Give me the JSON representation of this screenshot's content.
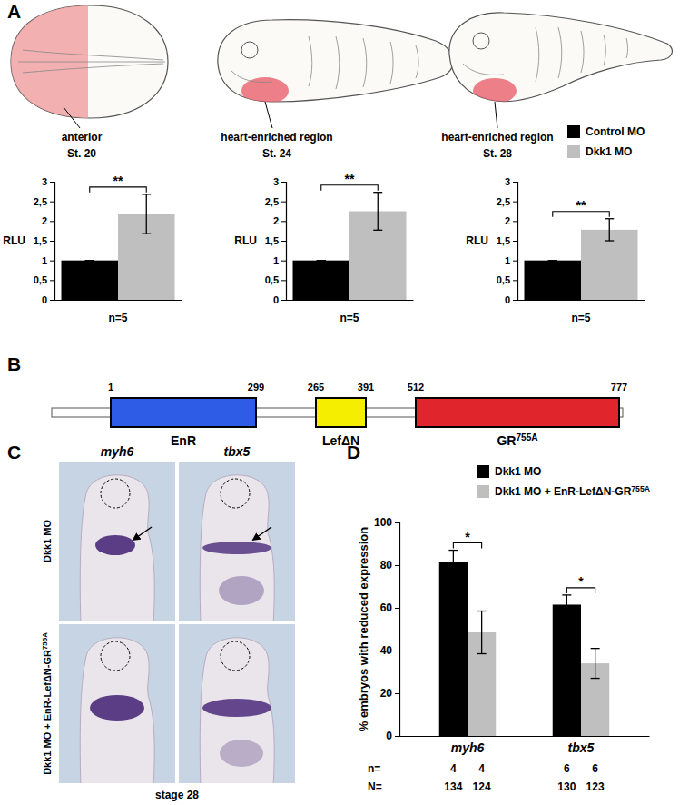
{
  "panel_labels": [
    "A",
    "B",
    "C",
    "D"
  ],
  "embryo_drawings": [
    {
      "label": "anterior",
      "stage": "St. 20"
    },
    {
      "label": "heart-enriched region",
      "stage": "St. 24"
    },
    {
      "label": "heart-enriched region",
      "stage": "St. 28"
    }
  ],
  "chart_data": [
    {
      "type": "bar",
      "categories": [
        null
      ],
      "xlabel": "n=5",
      "ylabel": "RLU",
      "ylim": [
        0,
        3
      ],
      "yticks": [
        0,
        {
          "value": 0.5,
          "label": "0,5"
        },
        1,
        {
          "value": 1.5,
          "label": "1,5"
        },
        2,
        {
          "value": 2.5,
          "label": "2,5"
        },
        3
      ],
      "series": [
        {
          "color": "#000000",
          "values": [
            1
          ],
          "errors": [
            0
          ]
        },
        {
          "color": "#bfbfbf",
          "values": [
            2.18
          ],
          "errors": [
            0.5
          ]
        }
      ],
      "annotations": [
        "**"
      ]
    },
    {
      "type": "bar",
      "categories": [
        null
      ],
      "xlabel": "n=5",
      "ylabel": "RLU",
      "ylim": [
        0,
        3
      ],
      "yticks": [
        0,
        {
          "value": 0.5,
          "label": "0,5"
        },
        1,
        {
          "value": 1.5,
          "label": "1,5"
        },
        2,
        {
          "value": 2.5,
          "label": "2,5"
        },
        3
      ],
      "series": [
        {
          "color": "#000000",
          "values": [
            1
          ],
          "errors": [
            0
          ]
        },
        {
          "color": "#bfbfbf",
          "values": [
            2.25
          ],
          "errors": [
            0.48
          ]
        }
      ],
      "annotations": [
        "**"
      ]
    },
    {
      "type": "bar",
      "categories": [
        null
      ],
      "xlabel": "n=5",
      "ylabel": "RLU",
      "ylim": [
        0,
        3
      ],
      "yticks": [
        0,
        {
          "value": 0.5,
          "label": "0,5"
        },
        1,
        {
          "value": 1.5,
          "label": "1,5"
        },
        2,
        {
          "value": 2.5,
          "label": "2,5"
        },
        3
      ],
      "series": [
        {
          "name": "Control MO",
          "color": "#000000",
          "values": [
            1
          ],
          "errors": [
            0
          ]
        },
        {
          "name": "Dkk1 MO",
          "color": "#bfbfbf",
          "values": [
            1.78
          ],
          "errors": [
            0.28
          ]
        }
      ],
      "legend": "top-right",
      "annotations": [
        "**"
      ]
    },
    {
      "type": "bar",
      "categories": [
        "myh6",
        "tbx5"
      ],
      "ylabel": "% embryos with reduced expression",
      "ylim": [
        0,
        100
      ],
      "yticks": [
        0,
        20,
        40,
        60,
        80,
        100
      ],
      "series": [
        {
          "name": "Dkk1 MO",
          "color": "#000000",
          "values": [
            81.5,
            61.5
          ],
          "errors": [
            5.5,
            4.5
          ]
        },
        {
          "name": "Dkk1 MO + EnR-LefΔN-GR755A",
          "color": "#bfbfbf",
          "values": [
            48.5,
            34
          ],
          "errors": [
            10,
            7
          ]
        }
      ],
      "legend": "top-right",
      "annotations": [
        "*",
        "*"
      ],
      "n_label": "n=",
      "n": [
        4,
        4,
        6,
        6
      ],
      "N_label": "N=",
      "N": [
        134,
        124,
        130,
        123
      ]
    }
  ],
  "construct": {
    "domains": [
      {
        "label": "EnR",
        "start": 1,
        "end": 299,
        "color": "#2f5ce6"
      },
      {
        "label": "LefΔN",
        "start": 265,
        "end": 391,
        "color": "#f5ee00"
      },
      {
        "label": "GR755A",
        "start": 512,
        "end": 777,
        "color": "#e0262c"
      }
    ]
  },
  "in_situ": {
    "genes": [
      "myh6",
      "tbx5"
    ],
    "rows": [
      "Dkk1 MO",
      "Dkk1 MO + EnR-LefΔN-GR755A"
    ],
    "stage": "stage 28"
  }
}
